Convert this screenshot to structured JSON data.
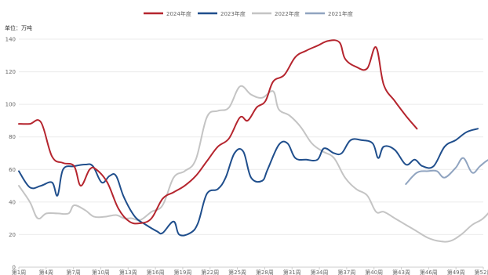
{
  "chart_data": {
    "type": "line",
    "unit_label": "单位：万吨",
    "ylim": [
      0,
      140
    ],
    "y_ticks": [
      0,
      20,
      40,
      60,
      80,
      100,
      120,
      140
    ],
    "xlim": [
      1,
      52
    ],
    "x_ticks": [
      {
        "x": 1,
        "label": "第1周"
      },
      {
        "x": 4,
        "label": "第4周"
      },
      {
        "x": 7,
        "label": "第7周"
      },
      {
        "x": 10,
        "label": "第10周"
      },
      {
        "x": 13,
        "label": "第13周"
      },
      {
        "x": 16,
        "label": "第16周"
      },
      {
        "x": 19,
        "label": "第19周"
      },
      {
        "x": 22,
        "label": "第22周"
      },
      {
        "x": 25,
        "label": "第25周"
      },
      {
        "x": 28,
        "label": "第28周"
      },
      {
        "x": 31,
        "label": "第31周"
      },
      {
        "x": 34,
        "label": "第34周"
      },
      {
        "x": 37,
        "label": "第37周"
      },
      {
        "x": 40,
        "label": "第40周"
      },
      {
        "x": 43,
        "label": "第43周"
      },
      {
        "x": 46,
        "label": "第46周"
      },
      {
        "x": 49,
        "label": "第49周"
      },
      {
        "x": 52,
        "label": "第52周"
      }
    ],
    "grid": true,
    "legend_position": "top-center",
    "series": [
      {
        "name": "2024年度",
        "color": "#b5252e",
        "x": [
          1,
          2,
          3,
          4,
          5,
          6,
          7,
          8,
          9,
          10,
          11,
          12,
          13,
          14,
          15,
          16,
          17,
          18,
          19,
          20,
          21,
          22,
          23,
          24,
          25,
          26,
          27,
          28,
          29,
          30,
          31,
          32,
          33,
          34,
          35,
          36,
          37,
          38,
          39,
          40,
          41
        ],
        "values": [
          88,
          88,
          88,
          68,
          64,
          62,
          50,
          60,
          58,
          48,
          35,
          27,
          27,
          30,
          42,
          46,
          50,
          55,
          63,
          72,
          78,
          92,
          90,
          100,
          106,
          116,
          120,
          130,
          134,
          137,
          139,
          128,
          123,
          122,
          135,
          112,
          102,
          93,
          85,
          null,
          null
        ]
      },
      {
        "name": "2023年度",
        "color": "#1f4e8c",
        "x": [
          1,
          2,
          3,
          4,
          5,
          6,
          7,
          8,
          9,
          10,
          11,
          12,
          13,
          14,
          15,
          16,
          17,
          18,
          19,
          20,
          21,
          22,
          23,
          24,
          25,
          26,
          27,
          28,
          29,
          30,
          31,
          32,
          33,
          34,
          35,
          36,
          37,
          38,
          39,
          40,
          41,
          42,
          43,
          44,
          45,
          46,
          47,
          48,
          49,
          50,
          51,
          52
        ],
        "values": [
          59,
          48,
          50,
          52,
          44,
          60,
          62,
          62,
          63,
          58,
          51,
          57,
          44,
          30,
          26,
          23,
          21,
          27,
          20,
          21,
          26,
          45,
          48,
          55,
          69,
          71,
          53,
          53,
          60,
          76,
          76,
          67,
          66,
          66,
          73,
          70,
          70,
          78,
          78,
          77,
          67,
          74,
          72,
          64,
          66,
          62,
          62,
          64,
          75,
          80,
          83,
          85
        ]
      },
      {
        "name": "2022年度",
        "color": "#c4c4c4",
        "x": [
          1,
          2,
          3,
          4,
          5,
          6,
          7,
          8,
          9,
          10,
          11,
          12,
          13,
          14,
          15,
          16,
          17,
          18,
          19,
          20,
          21,
          22,
          23,
          24,
          25,
          26,
          27,
          28,
          29,
          30,
          31,
          32,
          33,
          34,
          35,
          36,
          37,
          38,
          39,
          40,
          41,
          42,
          43,
          44,
          45,
          46,
          47,
          48,
          49,
          50,
          51,
          52
        ],
        "values": [
          50,
          40,
          30,
          33,
          33,
          33,
          38,
          35,
          31,
          31,
          32,
          31,
          30,
          28,
          35,
          38,
          56,
          58,
          65,
          92,
          96,
          98,
          112,
          106,
          104,
          108,
          96,
          92,
          86,
          76,
          70,
          66,
          54,
          48,
          44,
          34,
          34,
          30,
          26,
          22,
          18,
          16,
          16,
          20,
          26,
          30,
          38,
          50,
          55,
          null,
          null,
          null
        ]
      },
      {
        "name": "2021年度",
        "color": "#90a4c0",
        "x": [
          45,
          46,
          47,
          48,
          49,
          50,
          51,
          52
        ],
        "values": [
          51,
          59,
          60,
          55,
          60,
          67,
          58,
          60
        ]
      }
    ],
    "series_override": {
      "2024": [
        [
          1,
          88
        ],
        [
          2,
          88
        ],
        [
          3,
          89
        ],
        [
          4,
          68
        ],
        [
          5,
          64
        ],
        [
          6,
          62
        ],
        [
          6.6,
          50
        ],
        [
          7.4,
          60
        ],
        [
          8,
          60
        ],
        [
          9,
          52
        ],
        [
          10,
          36
        ],
        [
          11,
          28
        ],
        [
          12,
          27
        ],
        [
          13,
          30
        ],
        [
          14,
          42
        ],
        [
          15,
          46
        ],
        [
          16,
          50
        ],
        [
          17,
          56
        ],
        [
          18,
          65
        ],
        [
          19,
          74
        ],
        [
          20,
          79
        ],
        [
          21,
          92
        ],
        [
          21.7,
          90
        ],
        [
          22.5,
          98
        ],
        [
          23.3,
          102
        ],
        [
          24,
          114
        ],
        [
          25,
          118
        ],
        [
          26,
          129
        ],
        [
          27,
          133
        ],
        [
          28,
          136
        ],
        [
          29,
          139
        ],
        [
          30,
          138
        ],
        [
          30.5,
          128
        ],
        [
          31.5,
          123
        ],
        [
          32.5,
          122
        ],
        [
          33.3,
          135
        ],
        [
          34,
          112
        ],
        [
          35,
          102
        ],
        [
          36,
          93
        ],
        [
          37,
          85
        ]
      ],
      "2023": [
        [
          1,
          59
        ],
        [
          2,
          49
        ],
        [
          3,
          50
        ],
        [
          4,
          52
        ],
        [
          4.5,
          44
        ],
        [
          5,
          60
        ],
        [
          6,
          62
        ],
        [
          7,
          63
        ],
        [
          7.7,
          62
        ],
        [
          8.5,
          52
        ],
        [
          9.2,
          56
        ],
        [
          9.8,
          56
        ],
        [
          10.5,
          43
        ],
        [
          11.5,
          31
        ],
        [
          12.5,
          26
        ],
        [
          13.5,
          22
        ],
        [
          14,
          21
        ],
        [
          15,
          28
        ],
        [
          15.5,
          20
        ],
        [
          16.5,
          21
        ],
        [
          17.2,
          27
        ],
        [
          18,
          45
        ],
        [
          19,
          48
        ],
        [
          19.7,
          55
        ],
        [
          20.5,
          70
        ],
        [
          21.3,
          71
        ],
        [
          22,
          55
        ],
        [
          23,
          53
        ],
        [
          23.5,
          60
        ],
        [
          24.5,
          75
        ],
        [
          25.3,
          76
        ],
        [
          26,
          67
        ],
        [
          27,
          66
        ],
        [
          28,
          66
        ],
        [
          28.6,
          73
        ],
        [
          29.5,
          70
        ],
        [
          30.2,
          70
        ],
        [
          31,
          78
        ],
        [
          32,
          78
        ],
        [
          33,
          76
        ],
        [
          33.5,
          67
        ],
        [
          34,
          74
        ],
        [
          35,
          72
        ],
        [
          36,
          63
        ],
        [
          36.8,
          66
        ],
        [
          37.5,
          62
        ],
        [
          38.5,
          62
        ],
        [
          39.5,
          74
        ],
        [
          40.5,
          78
        ],
        [
          41.5,
          83
        ],
        [
          42.5,
          85
        ]
      ],
      "2022": [
        [
          1,
          50
        ],
        [
          2,
          40
        ],
        [
          2.7,
          30
        ],
        [
          3.5,
          33
        ],
        [
          4.5,
          33
        ],
        [
          5.5,
          33
        ],
        [
          6,
          38
        ],
        [
          7,
          35
        ],
        [
          7.8,
          31
        ],
        [
          8.8,
          31
        ],
        [
          9.8,
          32
        ],
        [
          10.5,
          30
        ],
        [
          11.2,
          30
        ],
        [
          12,
          29
        ],
        [
          13,
          34
        ],
        [
          14,
          38
        ],
        [
          15,
          55
        ],
        [
          16,
          59
        ],
        [
          17,
          66
        ],
        [
          18,
          92
        ],
        [
          19,
          96
        ],
        [
          20,
          98
        ],
        [
          21,
          111
        ],
        [
          22,
          106
        ],
        [
          23,
          104
        ],
        [
          24,
          108
        ],
        [
          24.5,
          97
        ],
        [
          25.5,
          93
        ],
        [
          26.5,
          86
        ],
        [
          27.5,
          76
        ],
        [
          28.5,
          71
        ],
        [
          29.5,
          67
        ],
        [
          30.5,
          55
        ],
        [
          31.5,
          48
        ],
        [
          32.5,
          44
        ],
        [
          33.3,
          34
        ],
        [
          34,
          34
        ],
        [
          35,
          30
        ],
        [
          36,
          26
        ],
        [
          37,
          22
        ],
        [
          38,
          18
        ],
        [
          39,
          16
        ],
        [
          40,
          16
        ],
        [
          41,
          20
        ],
        [
          42,
          26
        ],
        [
          43,
          30
        ],
        [
          44,
          38
        ],
        [
          45,
          50
        ],
        [
          45.8,
          55
        ]
      ],
      "2021": [
        [
          36,
          51
        ],
        [
          37,
          58
        ],
        [
          38,
          59
        ],
        [
          38.8,
          59
        ],
        [
          39.5,
          55
        ],
        [
          40.5,
          61
        ],
        [
          41.2,
          67
        ],
        [
          42,
          58
        ],
        [
          42.7,
          62
        ],
        [
          43.5,
          66
        ],
        [
          44.2,
          66
        ],
        [
          45,
          61
        ]
      ]
    }
  }
}
